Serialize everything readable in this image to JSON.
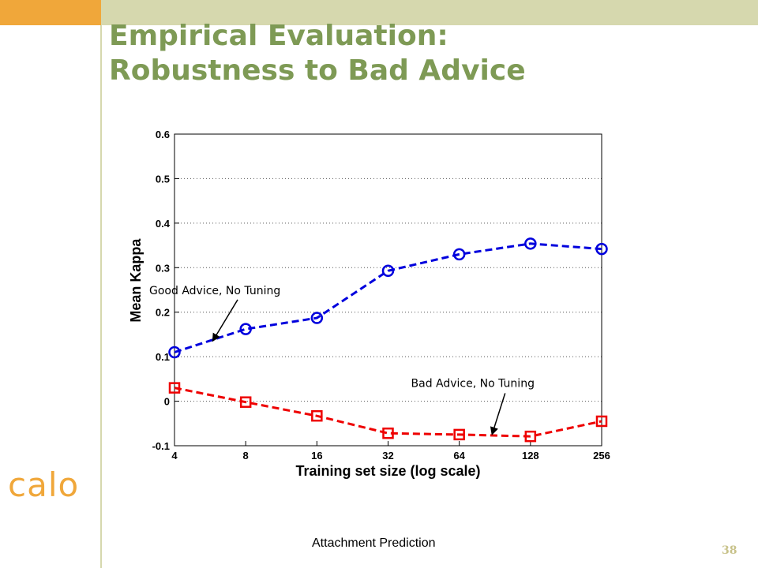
{
  "slide": {
    "title_line1": "Empirical Evaluation:",
    "title_line2": "Robustness to Bad Advice",
    "logo": "calo",
    "caption": "Attachment Prediction",
    "page_number": "38",
    "colors": {
      "title": "#7e9a55",
      "accent": "#f0a73a",
      "band": "#d6d8ae"
    }
  },
  "chart_data": {
    "type": "line",
    "xlabel": "Training set size (log scale)",
    "ylabel": "Mean Kappa",
    "x_scale": "log2",
    "categories": [
      "4",
      "8",
      "16",
      "32",
      "64",
      "128",
      "256"
    ],
    "x": [
      4,
      8,
      16,
      32,
      64,
      128,
      256
    ],
    "ylim": [
      -0.1,
      0.6
    ],
    "yticks": [
      "0.6",
      "0.5",
      "0.4",
      "0.3",
      "0.2",
      "0.1",
      "0",
      "-0.1"
    ],
    "grid": "horizontal dotted",
    "series": [
      {
        "color": "#0000dd",
        "marker": "circle",
        "values": [
          0.11,
          0.162,
          0.187,
          0.293,
          0.33,
          0.354,
          0.342
        ]
      },
      {
        "color": "#ee0000",
        "marker": "square",
        "values": [
          0.03,
          -0.002,
          -0.033,
          -0.072,
          -0.075,
          -0.079,
          -0.045
        ]
      }
    ],
    "annotations": [
      {
        "text": "Good Advice, No Tuning",
        "target_x": 5.8,
        "target_y": 0.135
      },
      {
        "text": "Bad Advice, No Tuning",
        "target_x": 88,
        "target_y": -0.075
      }
    ]
  }
}
